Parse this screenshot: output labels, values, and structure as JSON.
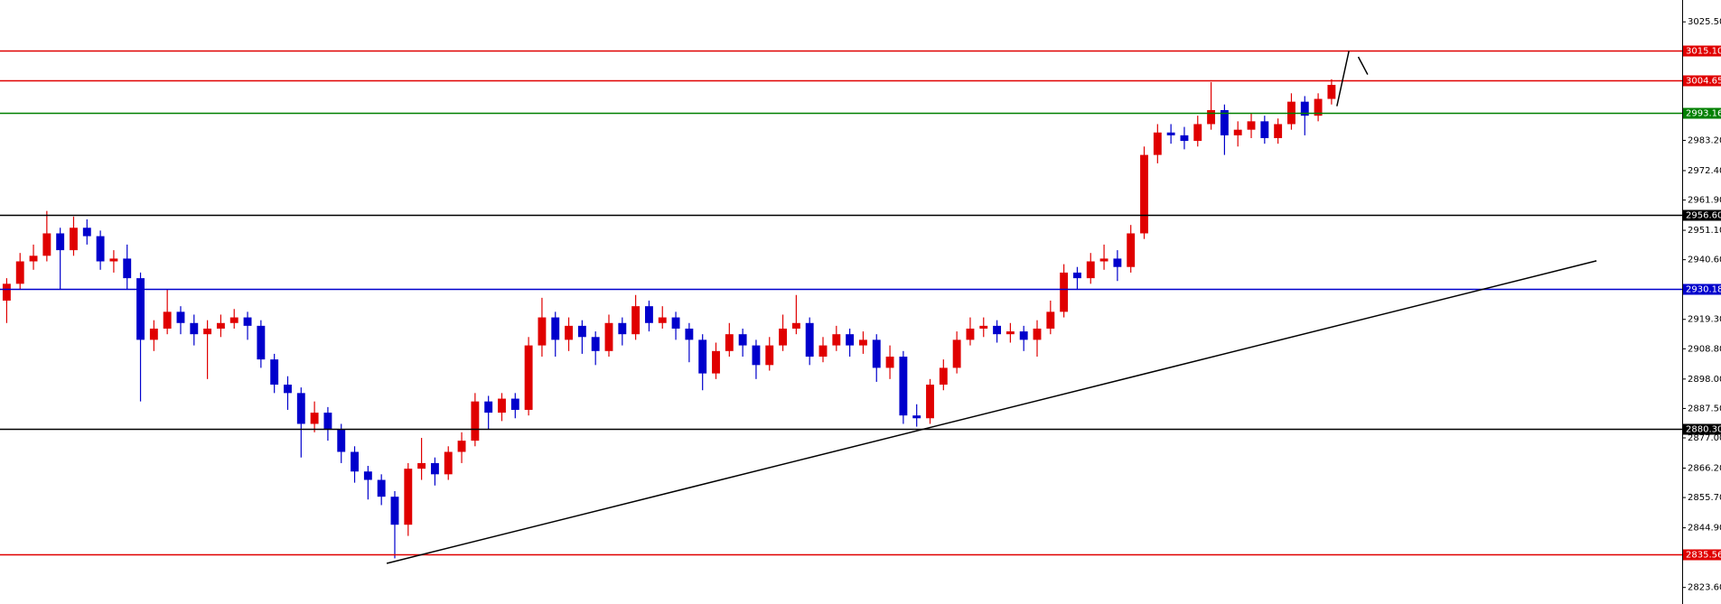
{
  "chart_data": {
    "type": "candlestick",
    "xlim": [
      -0.5,
      125.2
    ],
    "ylim": [
      2817.7,
      3033.3
    ],
    "up_color": "#e00000",
    "down_color": "#0000cc",
    "ohlc": [
      [
        2926,
        2934,
        2918,
        2932
      ],
      [
        2932,
        2943,
        2930,
        2940
      ],
      [
        2940,
        2946,
        2937,
        2942
      ],
      [
        2942,
        2958,
        2940,
        2950
      ],
      [
        2950,
        2952,
        2930,
        2944
      ],
      [
        2944,
        2956,
        2942,
        2952
      ],
      [
        2952,
        2955,
        2946,
        2949
      ],
      [
        2949,
        2951,
        2937,
        2940
      ],
      [
        2940,
        2944,
        2936,
        2941
      ],
      [
        2941,
        2946,
        2930,
        2934
      ],
      [
        2934,
        2936,
        2890,
        2912
      ],
      [
        2912,
        2919,
        2908,
        2916
      ],
      [
        2916,
        2930,
        2914,
        2922
      ],
      [
        2922,
        2924,
        2914,
        2918
      ],
      [
        2918,
        2921,
        2910,
        2914
      ],
      [
        2914,
        2919,
        2898,
        2916
      ],
      [
        2916,
        2921,
        2913,
        2918
      ],
      [
        2918,
        2923,
        2916,
        2920
      ],
      [
        2920,
        2922,
        2912,
        2917
      ],
      [
        2917,
        2919,
        2902,
        2905
      ],
      [
        2905,
        2907,
        2893,
        2896
      ],
      [
        2896,
        2899,
        2887,
        2893
      ],
      [
        2893,
        2895,
        2870,
        2882
      ],
      [
        2882,
        2890,
        2879,
        2886
      ],
      [
        2886,
        2888,
        2876,
        2880
      ],
      [
        2880,
        2882,
        2868,
        2872
      ],
      [
        2872,
        2874,
        2861,
        2865
      ],
      [
        2865,
        2867,
        2855,
        2862
      ],
      [
        2862,
        2864,
        2853,
        2856
      ],
      [
        2856,
        2858,
        2834,
        2846
      ],
      [
        2846,
        2868,
        2842,
        2866
      ],
      [
        2866,
        2877,
        2862,
        2868
      ],
      [
        2868,
        2870,
        2860,
        2864
      ],
      [
        2864,
        2874,
        2862,
        2872
      ],
      [
        2872,
        2879,
        2868,
        2876
      ],
      [
        2876,
        2893,
        2874,
        2890
      ],
      [
        2890,
        2892,
        2880,
        2886
      ],
      [
        2886,
        2893,
        2883,
        2891
      ],
      [
        2891,
        2893,
        2884,
        2887
      ],
      [
        2887,
        2913,
        2885,
        2910
      ],
      [
        2910,
        2927,
        2906,
        2920
      ],
      [
        2920,
        2922,
        2906,
        2912
      ],
      [
        2912,
        2920,
        2908,
        2917
      ],
      [
        2917,
        2919,
        2907,
        2913
      ],
      [
        2913,
        2915,
        2903,
        2908
      ],
      [
        2908,
        2921,
        2906,
        2918
      ],
      [
        2918,
        2920,
        2910,
        2914
      ],
      [
        2914,
        2928,
        2912,
        2924
      ],
      [
        2924,
        2926,
        2915,
        2918
      ],
      [
        2918,
        2924,
        2916,
        2920
      ],
      [
        2920,
        2922,
        2912,
        2916
      ],
      [
        2916,
        2918,
        2904,
        2912
      ],
      [
        2912,
        2914,
        2894,
        2900
      ],
      [
        2900,
        2911,
        2898,
        2908
      ],
      [
        2908,
        2918,
        2906,
        2914
      ],
      [
        2914,
        2916,
        2906,
        2910
      ],
      [
        2910,
        2912,
        2898,
        2903
      ],
      [
        2903,
        2913,
        2901,
        2910
      ],
      [
        2910,
        2921,
        2908,
        2916
      ],
      [
        2916,
        2928,
        2914,
        2918
      ],
      [
        2918,
        2920,
        2903,
        2906
      ],
      [
        2906,
        2913,
        2904,
        2910
      ],
      [
        2910,
        2917,
        2908,
        2914
      ],
      [
        2914,
        2916,
        2906,
        2910
      ],
      [
        2910,
        2915,
        2907,
        2912
      ],
      [
        2912,
        2914,
        2897,
        2902
      ],
      [
        2902,
        2910,
        2898,
        2906
      ],
      [
        2906,
        2908,
        2882,
        2885
      ],
      [
        2885,
        2889,
        2881,
        2884
      ],
      [
        2884,
        2898,
        2882,
        2896
      ],
      [
        2896,
        2905,
        2894,
        2902
      ],
      [
        2902,
        2915,
        2900,
        2912
      ],
      [
        2912,
        2920,
        2910,
        2916
      ],
      [
        2916,
        2920,
        2913,
        2917
      ],
      [
        2917,
        2919,
        2911,
        2914
      ],
      [
        2914,
        2918,
        2911,
        2915
      ],
      [
        2915,
        2917,
        2908,
        2912
      ],
      [
        2912,
        2919,
        2906,
        2916
      ],
      [
        2916,
        2926,
        2914,
        2922
      ],
      [
        2922,
        2939,
        2920,
        2936
      ],
      [
        2936,
        2938,
        2930,
        2934
      ],
      [
        2934,
        2943,
        2932,
        2940
      ],
      [
        2940,
        2946,
        2937,
        2941
      ],
      [
        2941,
        2944,
        2933,
        2938
      ],
      [
        2938,
        2953,
        2936,
        2950
      ],
      [
        2950,
        2981,
        2948,
        2978
      ],
      [
        2978,
        2989,
        2975,
        2986
      ],
      [
        2986,
        2989,
        2982,
        2985
      ],
      [
        2985,
        2988,
        2980,
        2983
      ],
      [
        2983,
        2992,
        2981,
        2989
      ],
      [
        2989,
        3004,
        2987,
        2994
      ],
      [
        2994,
        2996,
        2978,
        2985
      ],
      [
        2985,
        2990,
        2981,
        2987
      ],
      [
        2987,
        2993,
        2984,
        2990
      ],
      [
        2990,
        2992,
        2982,
        2984
      ],
      [
        2984,
        2991,
        2982,
        2989
      ],
      [
        2989,
        3000,
        2987,
        2997
      ],
      [
        2997,
        2999,
        2985,
        2992
      ],
      [
        2992,
        3000,
        2990,
        2998
      ],
      [
        2998,
        3005,
        2996,
        3003
      ]
    ],
    "yticks": [
      {
        "value": 3025.5,
        "label": "3025.50"
      },
      {
        "value": 2983.2,
        "label": "2983.20"
      },
      {
        "value": 2972.4,
        "label": "2972.40"
      },
      {
        "value": 2961.9,
        "label": "2961.90"
      },
      {
        "value": 2951.1,
        "label": "2951.10"
      },
      {
        "value": 2940.6,
        "label": "2940.60"
      },
      {
        "value": 2919.3,
        "label": "2919.30"
      },
      {
        "value": 2908.8,
        "label": "2908.80"
      },
      {
        "value": 2898.0,
        "label": "2898.00"
      },
      {
        "value": 2887.5,
        "label": "2887.50"
      },
      {
        "value": 2877.0,
        "label": "2877.00"
      },
      {
        "value": 2866.2,
        "label": "2866.20"
      },
      {
        "value": 2855.7,
        "label": "2855.70"
      },
      {
        "value": 2844.9,
        "label": "2844.90"
      },
      {
        "value": 2823.6,
        "label": "2823.60"
      }
    ],
    "levels": [
      {
        "value": 3015.1,
        "label": "3015.10",
        "color": "#e00000"
      },
      {
        "value": 3004.65,
        "label": "3004.65",
        "color": "#e00000"
      },
      {
        "value": 2993.16,
        "label": "2993.16",
        "color": "#008000"
      },
      {
        "value": 2956.6,
        "label": "2956.60",
        "color": "#000000"
      },
      {
        "value": 2930.18,
        "label": "2930.18",
        "color": "#0000cc"
      },
      {
        "value": 2880.3,
        "label": "2880.30",
        "color": "#000000"
      },
      {
        "value": 2835.56,
        "label": "2835.56",
        "color": "#e00000"
      }
    ],
    "lines": [
      {
        "x": [
          28.4,
          118.8
        ],
        "y": [
          2832.2,
          2940.2
        ]
      },
      {
        "x": [
          99.4,
          100.3
        ],
        "y": [
          2995.4,
          3015.1
        ]
      },
      {
        "x": [
          101,
          101.7
        ],
        "y": [
          3013,
          3006.7
        ]
      }
    ]
  }
}
